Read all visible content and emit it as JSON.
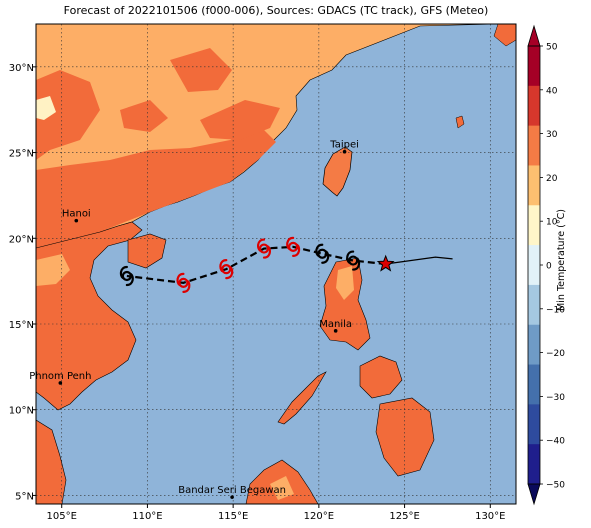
{
  "title": "Forecast of 2022101506 (f000-006), Sources: GDACS (TC track), GFS (Meteo)",
  "map": {
    "lon_range": [
      103.5,
      131.5
    ],
    "lat_range": [
      4.5,
      32.5
    ],
    "lon_ticks": [
      105,
      110,
      115,
      120,
      125,
      130
    ],
    "lat_ticks": [
      5,
      10,
      15,
      20,
      25,
      30
    ],
    "lon_tick_labels": [
      "105°E",
      "110°E",
      "115°E",
      "120°E",
      "125°E",
      "130°E"
    ],
    "lat_tick_labels": [
      "5°N",
      "10°N",
      "15°N",
      "20°N",
      "25°N",
      "30°N"
    ],
    "grid": true,
    "ocean_color": "#8fb4d9"
  },
  "cities": [
    {
      "name": "Taipei",
      "lon": 121.5,
      "lat": 25.05
    },
    {
      "name": "Hanoi",
      "lon": 105.85,
      "lat": 21.03
    },
    {
      "name": "Manila",
      "lon": 120.98,
      "lat": 14.6
    },
    {
      "name": "Phnom Penh",
      "lon": 104.92,
      "lat": 11.56
    },
    {
      "name": "Bandar Seri Begawan",
      "lon": 114.94,
      "lat": 4.9
    }
  ],
  "track": {
    "line_color": "#000000",
    "forecast_points": [
      {
        "lon": 108.8,
        "lat": 17.8,
        "symbol": "depression",
        "color": "#000000"
      },
      {
        "lon": 112.1,
        "lat": 17.4,
        "symbol": "storm",
        "color": "#dd0000"
      },
      {
        "lon": 114.6,
        "lat": 18.2,
        "symbol": "storm",
        "color": "#dd0000"
      },
      {
        "lon": 116.8,
        "lat": 19.4,
        "symbol": "storm",
        "color": "#dd0000"
      },
      {
        "lon": 118.5,
        "lat": 19.5,
        "symbol": "storm",
        "color": "#dd0000"
      },
      {
        "lon": 120.2,
        "lat": 19.1,
        "symbol": "depression",
        "color": "#000000"
      },
      {
        "lon": 122.0,
        "lat": 18.7,
        "symbol": "depression",
        "color": "#000000"
      }
    ],
    "current_position": {
      "lon": 123.9,
      "lat": 18.5,
      "color": "#dd0000"
    },
    "past_track": [
      [
        123.9,
        18.5
      ],
      [
        126.8,
        18.9
      ],
      [
        127.8,
        18.8
      ]
    ]
  },
  "colorbar": {
    "label": "Min Temperature (°C)",
    "min": -50,
    "max": 50,
    "tick_values": [
      -50,
      -40,
      -30,
      -20,
      -10,
      0,
      10,
      20,
      30,
      40,
      50
    ],
    "tick_labels": [
      "−50",
      "−40",
      "−30",
      "−20",
      "−10",
      "0",
      "10",
      "20",
      "30",
      "40",
      "50"
    ],
    "colors": [
      "#1f1e8c",
      "#2e4b9e",
      "#4470ac",
      "#6f9bc6",
      "#a5c8e1",
      "#e2f2f8",
      "#fff6c9",
      "#fdbf70",
      "#f47b45",
      "#d6372c",
      "#a50026"
    ]
  }
}
